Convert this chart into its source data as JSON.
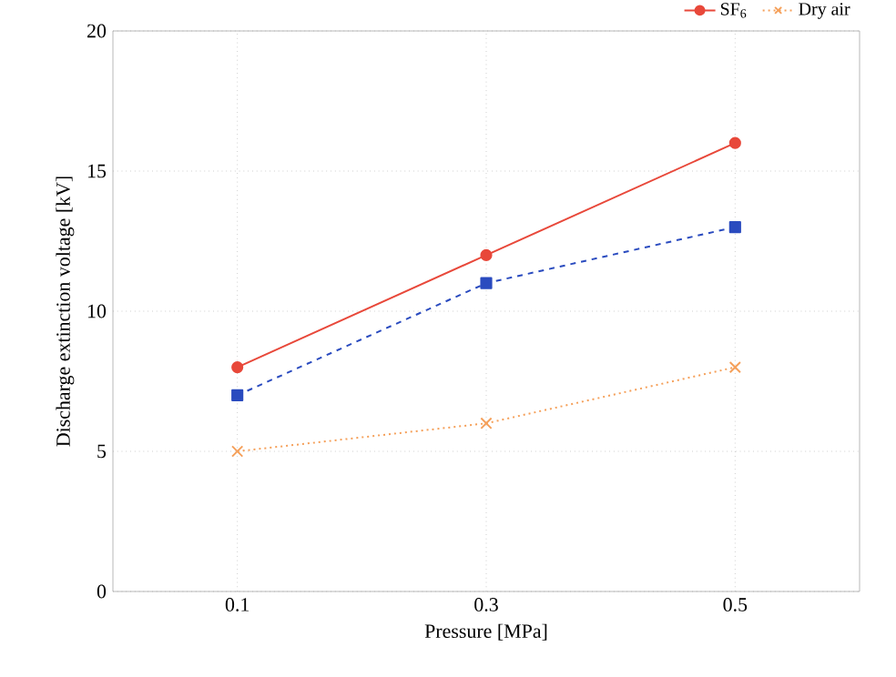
{
  "chart_data": {
    "type": "line",
    "xlabel": "Pressure [MPa]",
    "ylabel": "Discharge extinction voltage [kV]",
    "x": [
      0.1,
      0.3,
      0.5
    ],
    "series": [
      {
        "name": "SF$_{6}$",
        "color": "#e8483a",
        "values": [
          8,
          12,
          16
        ],
        "marker": "circle",
        "line_style": "solid"
      },
      {
        "color": "#2a4bbf",
        "values": [
          7,
          11,
          13
        ],
        "marker": "square",
        "line_style": "dashed"
      },
      {
        "name": "Dry air",
        "color": "#f5a05a",
        "values": [
          5,
          6,
          8
        ],
        "marker": "cross",
        "line_style": "dotted"
      }
    ],
    "xlim": [
      0,
      0.6
    ],
    "xticks": [
      0.1,
      0.3,
      0.5
    ],
    "ylim": [
      0,
      20
    ],
    "yticks": [
      0,
      5,
      10,
      15,
      20
    ],
    "grid": true,
    "legend": "top right"
  }
}
